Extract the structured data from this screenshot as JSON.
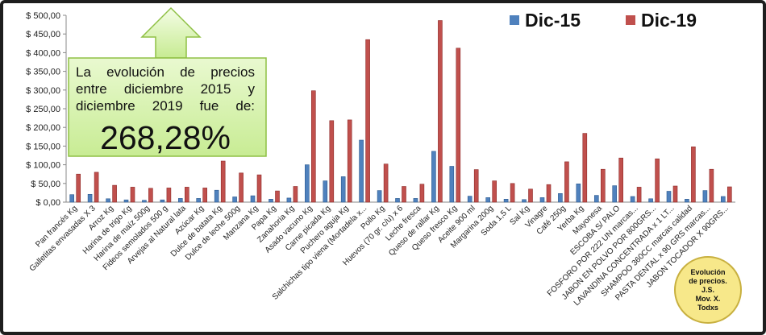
{
  "chart_data": {
    "type": "bar",
    "categories": [
      "Pan francés Kg",
      "Galletitas envasadas X 3",
      "Arroz Kg",
      "Harina de trigo Kg",
      "Harina de maíz 500g",
      "Fideos semolados 500 g",
      "Arvejas al Natural lata",
      "Azúcar Kg",
      "Dulce de batata Kg",
      "Dulce de leche 500g",
      "Manzana Kg",
      "Papa Kg",
      "Zanahoria Kg",
      "Asado vacuno Kg",
      "Carne picada Kg",
      "Puchero aguja Kg",
      "Salchichas tipo viena (Mortadela x...",
      "Pollo Kg",
      "Huevos (70 gr. c/u) x 6",
      "Leche fresca",
      "Queso de rallar Kg",
      "Queso fresco Kg",
      "Aceite 900 ml",
      "Margarina 200g",
      "Soda 1,5 L",
      "Sal Kg",
      "Vinagre",
      "Café 250g",
      "Yerba Kg",
      "Mayonesa",
      "ESCOBA S/ PALO",
      "FOSFORO POR 222 UN marcas...",
      "JABON EN POLVO POR 800GRS...",
      "LAVANDINA CONCENTRADA x 1 LT...",
      "SHAMPOO 360CC marcas calidad",
      "PASTA DENTAL x 90 GRS marcas...",
      "JABON TOCADOR X 90GRS..."
    ],
    "series": [
      {
        "name": "Dic-15",
        "color": "#4f81bd",
        "values": [
          20,
          21,
          9,
          6,
          5,
          6,
          10,
          10,
          32,
          14,
          17,
          8,
          11,
          100,
          57,
          68,
          166,
          31,
          10,
          10,
          136,
          96,
          16,
          12,
          8,
          7,
          12,
          23,
          49,
          18,
          44,
          15,
          9,
          29,
          8,
          31,
          15
        ]
      },
      {
        "name": "Dic-19",
        "color": "#c0504d",
        "values": [
          75,
          80,
          45,
          40,
          37,
          38,
          40,
          38,
          110,
          78,
          73,
          30,
          42,
          298,
          218,
          220,
          435,
          102,
          42,
          48,
          486,
          412,
          87,
          57,
          50,
          35,
          47,
          108,
          184,
          88,
          118,
          40,
          116,
          43,
          148,
          88,
          41
        ]
      }
    ],
    "ylim": [
      0,
      500
    ],
    "yticks": [
      "$ 0,00",
      "$ 50,00",
      "$ 100,00",
      "$ 150,00",
      "$ 200,00",
      "$ 250,00",
      "$ 300,00",
      "$ 350,00",
      "$ 400,00",
      "$ 450,00",
      "$ 500,00"
    ],
    "legend_position": "top-right",
    "grid": false
  },
  "callout": {
    "text": "La evolución de precios entre diciembre 2015 y diciembre 2019 fue de:",
    "value": "268,28%"
  },
  "badge": {
    "line1": "Evolución",
    "line2": "de precios.",
    "line3": "J.S.",
    "line4": "Mov. X.",
    "line5": "Todxs"
  },
  "colors": {
    "callout_fill": "#d3f0a6",
    "callout_border": "#8fc045",
    "badge_fill": "#f7e88a"
  }
}
